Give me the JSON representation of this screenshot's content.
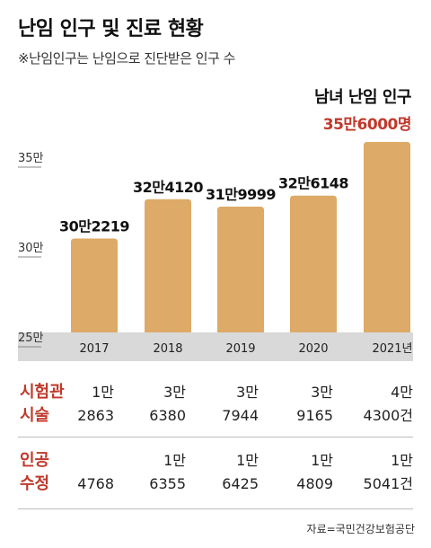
{
  "title": "난임 인구 및 진료 현황",
  "subtitle": "※난임인구는 난임으로 진단받은 인구 수",
  "highlight": {
    "label": "남녀 난임 인구",
    "value": "35만6000명"
  },
  "colors": {
    "bar": "#ddaa67",
    "axis_band": "#d9d9d9",
    "accent": "#c0392b"
  },
  "chart_data": {
    "type": "bar",
    "title": "난임 인구 및 진료 현황",
    "subtitle": "※난임인구는 난임으로 진단받은 인구 수",
    "xlabel": "",
    "ylabel": "",
    "categories": [
      "2017",
      "2018",
      "2019",
      "2020",
      "2021년"
    ],
    "values": [
      302219,
      324120,
      319999,
      326148,
      356000
    ],
    "data_labels": [
      "30만2219",
      "32만4120",
      "31만9999",
      "32만6148",
      ""
    ],
    "ylim": [
      250000,
      360000
    ],
    "yticks": [
      250000,
      300000,
      350000
    ],
    "ytick_labels": [
      "25만",
      "30만",
      "35만"
    ],
    "grid": false,
    "legend": "none"
  },
  "table": {
    "rows": [
      {
        "label_lines": [
          "시험관",
          "시술"
        ],
        "cells": [
          [
            "1만",
            "2863"
          ],
          [
            "3만",
            "6380"
          ],
          [
            "3만",
            "7944"
          ],
          [
            "3만",
            "9165"
          ],
          [
            "4만",
            "4300건"
          ]
        ]
      },
      {
        "label_lines": [
          "인공",
          "수정"
        ],
        "cells": [
          [
            "",
            "4768"
          ],
          [
            "1만",
            "6355"
          ],
          [
            "1만",
            "6425"
          ],
          [
            "1만",
            "4809"
          ],
          [
            "1만",
            "5041건"
          ]
        ]
      }
    ]
  },
  "source": "자료=국민건강보험공단"
}
